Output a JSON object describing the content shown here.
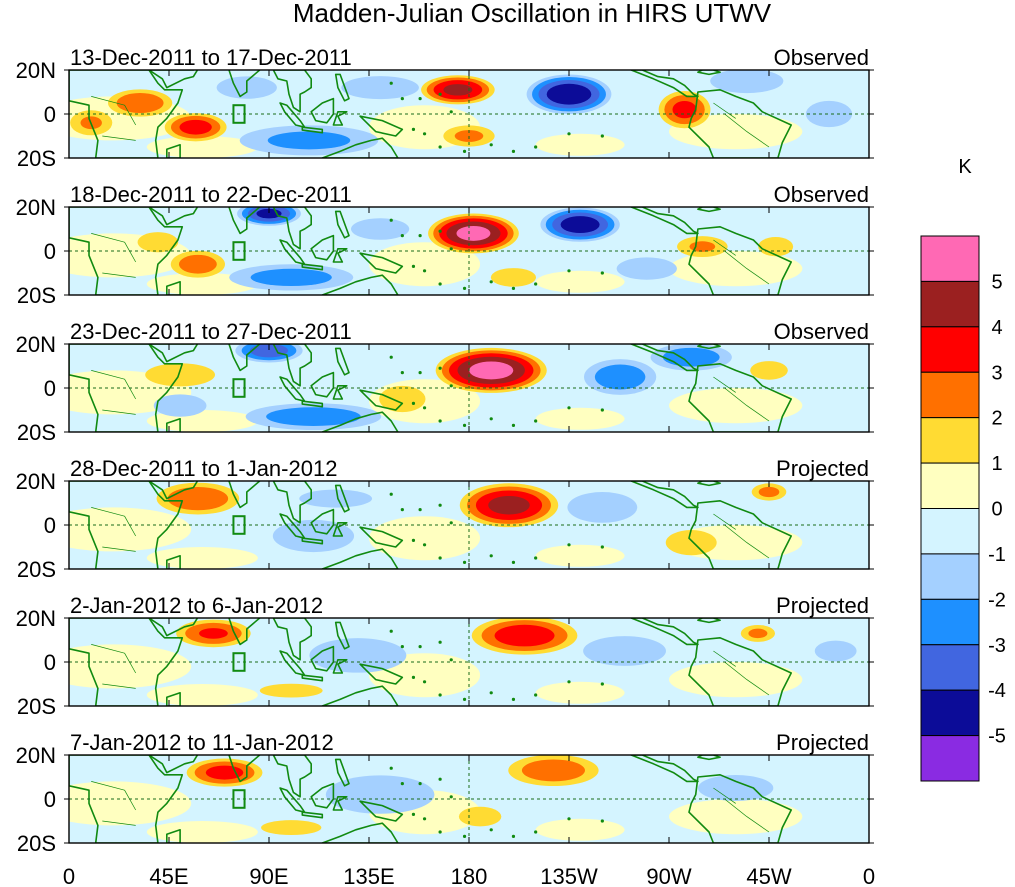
{
  "chart_data": {
    "type": "heatmap",
    "title": "Madden-Julian Oscillation in HIRS UTWV",
    "colorbar": {
      "unit": "K",
      "tick_labels": [
        "5",
        "4",
        "3",
        "2",
        "1",
        "0",
        "-1",
        "-2",
        "-3",
        "-4",
        "-5"
      ],
      "bins": [
        {
          "range": "> 5",
          "color": "#ff69b4"
        },
        {
          "range": "4 to 5",
          "color": "#9b2020"
        },
        {
          "range": "3 to 4",
          "color": "#ff0000"
        },
        {
          "range": "2 to 3",
          "color": "#ff7000"
        },
        {
          "range": "1 to 2",
          "color": "#ffdb33"
        },
        {
          "range": "0 to 1",
          "color": "#ffffc0"
        },
        {
          "range": "-1 to 0",
          "color": "#d4f4ff"
        },
        {
          "range": "-2 to -1",
          "color": "#a4d0ff"
        },
        {
          "range": "-3 to -2",
          "color": "#1e90ff"
        },
        {
          "range": "-4 to -3",
          "color": "#4166e0"
        },
        {
          "range": "-5 to -4",
          "color": "#0c0c98"
        },
        {
          "range": "< -5",
          "color": "#8a2be2"
        }
      ]
    },
    "x_axis": {
      "tick_labels": [
        "0",
        "45E",
        "90E",
        "135E",
        "180",
        "135W",
        "90W",
        "45W",
        "0"
      ],
      "tick_lon": [
        0,
        45,
        90,
        135,
        180,
        225,
        270,
        315,
        360
      ],
      "range": [
        0,
        360
      ]
    },
    "y_axis": {
      "tick_labels": [
        "20N",
        "0",
        "20S"
      ],
      "tick_lat": [
        20,
        0,
        -20
      ],
      "range": [
        -20,
        20
      ]
    },
    "reference_lines": {
      "equator_lat": 0,
      "dateline_lon": 180
    },
    "box_marker_lon_lat": [
      [
        74,
        -4
      ],
      [
        79,
        4
      ]
    ],
    "panels": [
      {
        "period": "13-Dec-2011 to 17-Dec-2011",
        "status": "Observed",
        "anomalies": [
          {
            "lon": 175,
            "lat": 11,
            "rx": 15,
            "ry": 6,
            "value": 4.2
          },
          {
            "lon": 225,
            "lat": 9,
            "rx": 17,
            "ry": 8,
            "value": -4.8
          },
          {
            "lon": 57,
            "lat": -6,
            "rx": 13,
            "ry": 6,
            "value": 3.4
          },
          {
            "lon": 32,
            "lat": 5,
            "rx": 14,
            "ry": 6,
            "value": 2.8
          },
          {
            "lon": 10,
            "lat": -4,
            "rx": 10,
            "ry": 6,
            "value": 2.0
          },
          {
            "lon": 277,
            "lat": 2,
            "rx": 11,
            "ry": 8,
            "value": 3.2
          },
          {
            "lon": 180,
            "lat": -10,
            "rx": 12,
            "ry": 5,
            "value": 2.1
          },
          {
            "lon": 108,
            "lat": -12,
            "rx": 32,
            "ry": 7,
            "value": -2.2
          },
          {
            "lon": 140,
            "lat": 12,
            "rx": 20,
            "ry": 6,
            "value": -1.6
          },
          {
            "lon": 80,
            "lat": 12,
            "rx": 16,
            "ry": 6,
            "value": -1.5
          },
          {
            "lon": 305,
            "lat": 15,
            "rx": 18,
            "ry": 6,
            "value": -1.8
          },
          {
            "lon": 342,
            "lat": 0,
            "rx": 14,
            "ry": 8,
            "value": -1.2
          }
        ]
      },
      {
        "period": "18-Dec-2011 to 22-Dec-2011",
        "status": "Observed",
        "anomalies": [
          {
            "lon": 182,
            "lat": 8,
            "rx": 18,
            "ry": 8,
            "value": 5.3
          },
          {
            "lon": 230,
            "lat": 12,
            "rx": 16,
            "ry": 7,
            "value": -4.6
          },
          {
            "lon": 90,
            "lat": 17,
            "rx": 13,
            "ry": 5,
            "value": -4.2
          },
          {
            "lon": 58,
            "lat": -6,
            "rx": 12,
            "ry": 6,
            "value": 2.6
          },
          {
            "lon": 40,
            "lat": 4,
            "rx": 10,
            "ry": 5,
            "value": 1.8
          },
          {
            "lon": 100,
            "lat": -12,
            "rx": 28,
            "ry": 6,
            "value": -2.4
          },
          {
            "lon": 285,
            "lat": 2,
            "rx": 12,
            "ry": 5,
            "value": 2.0
          },
          {
            "lon": 318,
            "lat": 2,
            "rx": 9,
            "ry": 5,
            "value": 1.6
          },
          {
            "lon": 260,
            "lat": -8,
            "rx": 16,
            "ry": 6,
            "value": -1.5
          },
          {
            "lon": 200,
            "lat": -12,
            "rx": 12,
            "ry": 5,
            "value": 1.5
          },
          {
            "lon": 140,
            "lat": 10,
            "rx": 16,
            "ry": 6,
            "value": -1.4
          }
        ]
      },
      {
        "period": "23-Dec-2011 to 27-Dec-2011",
        "status": "Observed",
        "anomalies": [
          {
            "lon": 190,
            "lat": 8,
            "rx": 22,
            "ry": 9,
            "value": 5.4
          },
          {
            "lon": 90,
            "lat": 17,
            "rx": 14,
            "ry": 5,
            "value": -3.6
          },
          {
            "lon": 248,
            "lat": 5,
            "rx": 16,
            "ry": 8,
            "value": -2.6
          },
          {
            "lon": 280,
            "lat": 14,
            "rx": 18,
            "ry": 6,
            "value": -2.6
          },
          {
            "lon": 110,
            "lat": -13,
            "rx": 30,
            "ry": 6,
            "value": -2.6
          },
          {
            "lon": 50,
            "lat": 6,
            "rx": 18,
            "ry": 6,
            "value": 1.6
          },
          {
            "lon": 50,
            "lat": -8,
            "rx": 14,
            "ry": 6,
            "value": -1.5
          },
          {
            "lon": 315,
            "lat": 8,
            "rx": 10,
            "ry": 5,
            "value": 1.5
          },
          {
            "lon": 150,
            "lat": -5,
            "rx": 14,
            "ry": 8,
            "value": 1.2
          },
          {
            "lon": 20,
            "lat": 0,
            "rx": 14,
            "ry": 10,
            "value": 0.6
          }
        ]
      },
      {
        "period": "28-Dec-2011 to 1-Jan-2012",
        "status": "Projected",
        "anomalies": [
          {
            "lon": 198,
            "lat": 9,
            "rx": 20,
            "ry": 9,
            "value": 4.3
          },
          {
            "lon": 58,
            "lat": 12,
            "rx": 18,
            "ry": 7,
            "value": 2.8
          },
          {
            "lon": 315,
            "lat": 15,
            "rx": 8,
            "ry": 4,
            "value": 2.2
          },
          {
            "lon": 110,
            "lat": -5,
            "rx": 20,
            "ry": 8,
            "value": -1.8
          },
          {
            "lon": 240,
            "lat": 8,
            "rx": 18,
            "ry": 8,
            "value": -1.6
          },
          {
            "lon": 120,
            "lat": 12,
            "rx": 20,
            "ry": 5,
            "value": -1.4
          },
          {
            "lon": 280,
            "lat": -8,
            "rx": 14,
            "ry": 7,
            "value": 1.4
          },
          {
            "lon": 20,
            "lat": -4,
            "rx": 18,
            "ry": 10,
            "value": 0.6
          }
        ]
      },
      {
        "period": "2-Jan-2012 to 6-Jan-2012",
        "status": "Projected",
        "anomalies": [
          {
            "lon": 205,
            "lat": 12,
            "rx": 22,
            "ry": 8,
            "value": 3.6
          },
          {
            "lon": 65,
            "lat": 13,
            "rx": 16,
            "ry": 6,
            "value": 3.0
          },
          {
            "lon": 310,
            "lat": 13,
            "rx": 8,
            "ry": 4,
            "value": 2.1
          },
          {
            "lon": 130,
            "lat": 3,
            "rx": 25,
            "ry": 9,
            "value": -1.6
          },
          {
            "lon": 250,
            "lat": 5,
            "rx": 22,
            "ry": 8,
            "value": -1.5
          },
          {
            "lon": 345,
            "lat": 5,
            "rx": 12,
            "ry": 6,
            "value": -1.3
          },
          {
            "lon": 100,
            "lat": -13,
            "rx": 18,
            "ry": 4,
            "value": 1.3
          },
          {
            "lon": 20,
            "lat": -2,
            "rx": 20,
            "ry": 10,
            "value": 0.5
          }
        ]
      },
      {
        "period": "7-Jan-2012 to 11-Jan-2012",
        "status": "Projected",
        "anomalies": [
          {
            "lon": 70,
            "lat": 12,
            "rx": 16,
            "ry": 6,
            "value": 3.3
          },
          {
            "lon": 218,
            "lat": 13,
            "rx": 20,
            "ry": 7,
            "value": 2.6
          },
          {
            "lon": 140,
            "lat": 2,
            "rx": 28,
            "ry": 10,
            "value": -1.6
          },
          {
            "lon": 300,
            "lat": 5,
            "rx": 20,
            "ry": 7,
            "value": -1.5
          },
          {
            "lon": 100,
            "lat": -13,
            "rx": 16,
            "ry": 4,
            "value": 1.5
          },
          {
            "lon": 185,
            "lat": -8,
            "rx": 15,
            "ry": 7,
            "value": 1.0
          },
          {
            "lon": 20,
            "lat": -2,
            "rx": 20,
            "ry": 10,
            "value": 0.5
          }
        ]
      }
    ]
  }
}
